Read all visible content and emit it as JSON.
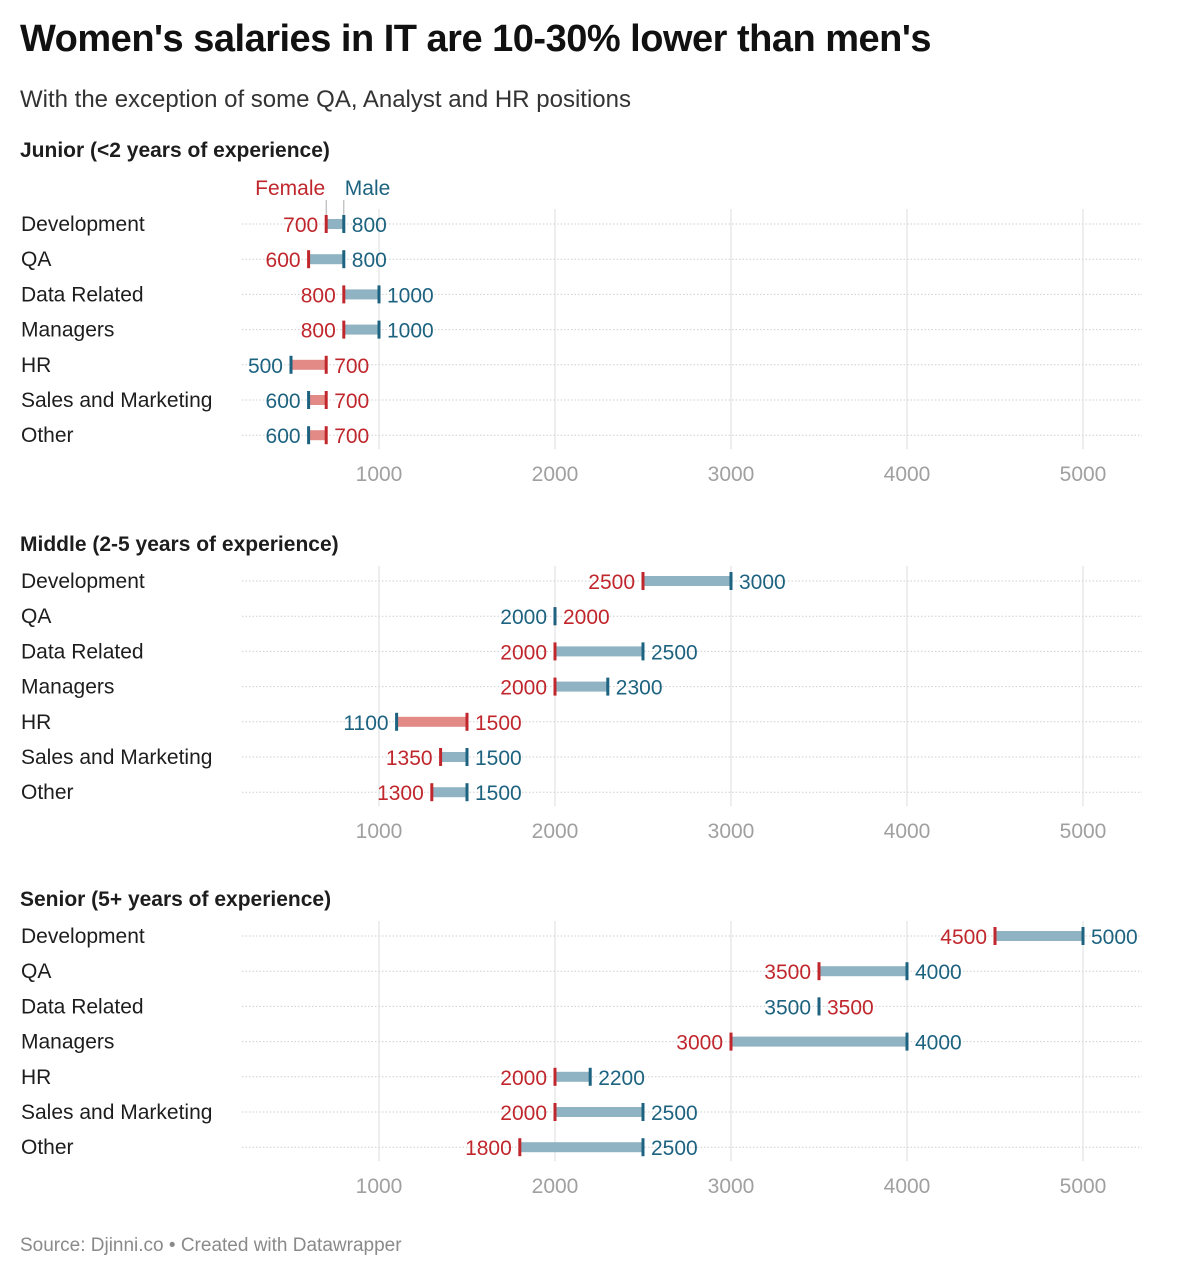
{
  "title": "Women's salaries in IT are 10-30% lower than men's",
  "subtitle": "With the exception of some QA, Analyst and HR positions",
  "footer": "Source: Djinni.co • Created with Datawrapper",
  "legend": {
    "female": "Female",
    "male": "Male"
  },
  "colors": {
    "female": "#c0272d",
    "male": "#1d6380",
    "bar_male_higher": "#8fb3c3",
    "bar_female_higher": "#e38a87",
    "grid": "#dddddd",
    "tick_label": "#a0a0a0"
  },
  "chart_data": [
    {
      "type": "range_dot",
      "title": "Junior (<2 years of experience)",
      "categories": [
        "Development",
        "QA",
        "Data Related",
        "Managers",
        "HR",
        "Sales and Marketing",
        "Other"
      ],
      "series": [
        {
          "name": "Female",
          "values": [
            700,
            600,
            800,
            800,
            700,
            700,
            700
          ]
        },
        {
          "name": "Male",
          "values": [
            800,
            800,
            1000,
            1000,
            500,
            600,
            600
          ]
        }
      ],
      "xticks": [
        1000,
        2000,
        3000,
        4000,
        5000
      ],
      "show_legend": true
    },
    {
      "type": "range_dot",
      "title": "Middle (2-5 years of experience)",
      "categories": [
        "Development",
        "QA",
        "Data Related",
        "Managers",
        "HR",
        "Sales and Marketing",
        "Other"
      ],
      "series": [
        {
          "name": "Female",
          "values": [
            2500,
            2000,
            2000,
            2000,
            1500,
            1350,
            1300
          ]
        },
        {
          "name": "Male",
          "values": [
            3000,
            2000,
            2500,
            2300,
            1100,
            1500,
            1500
          ]
        }
      ],
      "xticks": [
        1000,
        2000,
        3000,
        4000,
        5000
      ],
      "show_legend": false
    },
    {
      "type": "range_dot",
      "title": "Senior (5+ years of experience)",
      "categories": [
        "Development",
        "QA",
        "Data Related",
        "Managers",
        "HR",
        "Sales and Marketing",
        "Other"
      ],
      "series": [
        {
          "name": "Female",
          "values": [
            4500,
            3500,
            3500,
            3000,
            2000,
            2000,
            1800
          ]
        },
        {
          "name": "Male",
          "values": [
            5000,
            4000,
            3500,
            4000,
            2200,
            2500,
            2500
          ]
        }
      ],
      "xticks": [
        1000,
        2000,
        3000,
        4000,
        5000
      ],
      "show_legend": false
    }
  ]
}
